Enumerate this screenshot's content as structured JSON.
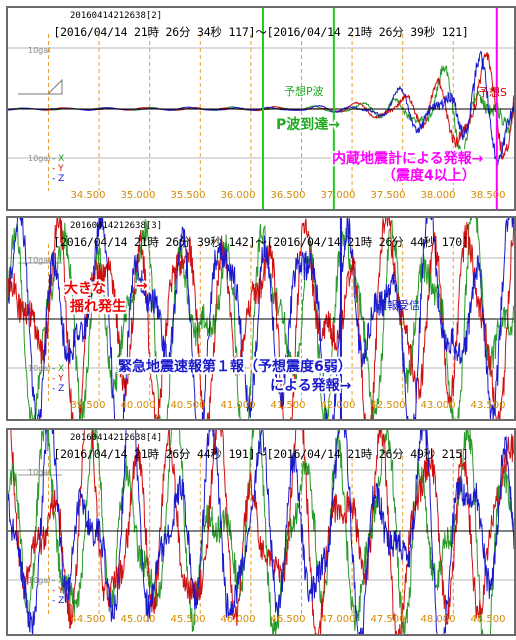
{
  "chart_data": [
    {
      "type": "line",
      "id": "20160414212638[2]",
      "time_range": "[2016/04/14 21時 26分 34秒 117]～[2016/04/14 21時 26分 39秒 121]",
      "xlim": [
        34.1,
        39.1
      ],
      "ticks": [
        34.5,
        35.0,
        35.5,
        36.0,
        36.5,
        37.0,
        37.5,
        38.0,
        38.5
      ],
      "tick_labels": [
        "34.500",
        "35.000",
        "35.500",
        "36.000",
        "36.500",
        "37.000",
        "37.500",
        "38.000",
        "38.500"
      ],
      "ylabel_top": "10gal",
      "ylabel_bottom": "10gal",
      "series": [
        {
          "name": "X",
          "color": "#2a9a2a"
        },
        {
          "name": "Y",
          "color": "#d01010"
        },
        {
          "name": "Z",
          "color": "#1a1acc"
        }
      ],
      "amplitude_profile": [
        [
          34.1,
          0.02
        ],
        [
          37.0,
          0.04
        ],
        [
          37.6,
          0.12
        ],
        [
          37.9,
          0.3
        ],
        [
          38.3,
          0.6
        ],
        [
          38.6,
          1.0
        ],
        [
          39.1,
          1.1
        ]
      ],
      "markers": [
        {
          "t": 36.62,
          "color": "#22cc22",
          "width": 2
        },
        {
          "t": 37.32,
          "color": "#22cc22",
          "width": 2
        },
        {
          "t": 38.93,
          "color": "#ff00ff",
          "width": 2
        }
      ],
      "annotations": [
        {
          "text": "予想P波",
          "color": "#22aa22"
        },
        {
          "text": "P波到達→",
          "color": "#22aa22"
        },
        {
          "text": "内蔵地震計による発報→",
          "color": "#ff00ff"
        },
        {
          "text": "（震度4以上）",
          "color": "#ff00ff"
        },
        {
          "text": "予想S",
          "color": "#cc0000"
        }
      ]
    },
    {
      "type": "line",
      "id": "20160414212638[3]",
      "time_range": "[2016/04/14 21時 26分 39秒 142]～[2016/04/14 21時 26分 44秒 170]",
      "xlim": [
        39.1,
        44.1
      ],
      "ticks": [
        39.5,
        40.0,
        40.5,
        41.0,
        41.5,
        42.0,
        42.5,
        43.0,
        43.5
      ],
      "tick_labels": [
        "39.500",
        "40.000",
        "40.500",
        "41.000",
        "41.500",
        "42.000",
        "42.500",
        "43.000",
        "43.500"
      ],
      "ylabel_top": "10gal",
      "ylabel_bottom": "10gal",
      "series": [
        {
          "name": "X",
          "color": "#2a9a2a"
        },
        {
          "name": "Y",
          "color": "#d01010"
        },
        {
          "name": "Z",
          "color": "#1a1acc"
        }
      ],
      "amplitude_profile": [
        [
          39.1,
          2.2
        ],
        [
          44.1,
          2.2
        ]
      ],
      "markers": [
        {
          "t": 42.39,
          "color": "#1a1acc",
          "width": 2
        }
      ],
      "annotations": [
        {
          "text": "大きな",
          "color": "#ee0000"
        },
        {
          "text": "揺れ発生",
          "color": "#ee0000"
        },
        {
          "text": "→",
          "color": "#ee0000"
        },
        {
          "text": "速報受信",
          "color": "#1a1acc"
        },
        {
          "text": "緊急地震速報第１報（予想震度6弱）",
          "color": "#1a1acc"
        },
        {
          "text": "による発報→",
          "color": "#1a1acc"
        }
      ]
    },
    {
      "type": "line",
      "id": "20160414212638[4]",
      "time_range": "[2016/04/14 21時 26分 44秒 191]～[2016/04/14 21時 26分 49秒 215]",
      "xlim": [
        44.1,
        49.1
      ],
      "ticks": [
        44.5,
        45.0,
        45.5,
        46.0,
        46.5,
        47.0,
        47.5,
        48.0,
        48.5
      ],
      "tick_labels": [
        "44.500",
        "45.000",
        "45.500",
        "46.000",
        "46.500",
        "47.000",
        "47.500",
        "48.000",
        "48.500"
      ],
      "ylabel_top": "10gal",
      "ylabel_bottom": "10gal",
      "series": [
        {
          "name": "X",
          "color": "#2a9a2a"
        },
        {
          "name": "Y",
          "color": "#d01010"
        },
        {
          "name": "Z",
          "color": "#1a1acc"
        }
      ],
      "amplitude_profile": [
        [
          44.1,
          2.2
        ],
        [
          49.1,
          2.2
        ]
      ],
      "markers": [],
      "annotations": []
    }
  ]
}
